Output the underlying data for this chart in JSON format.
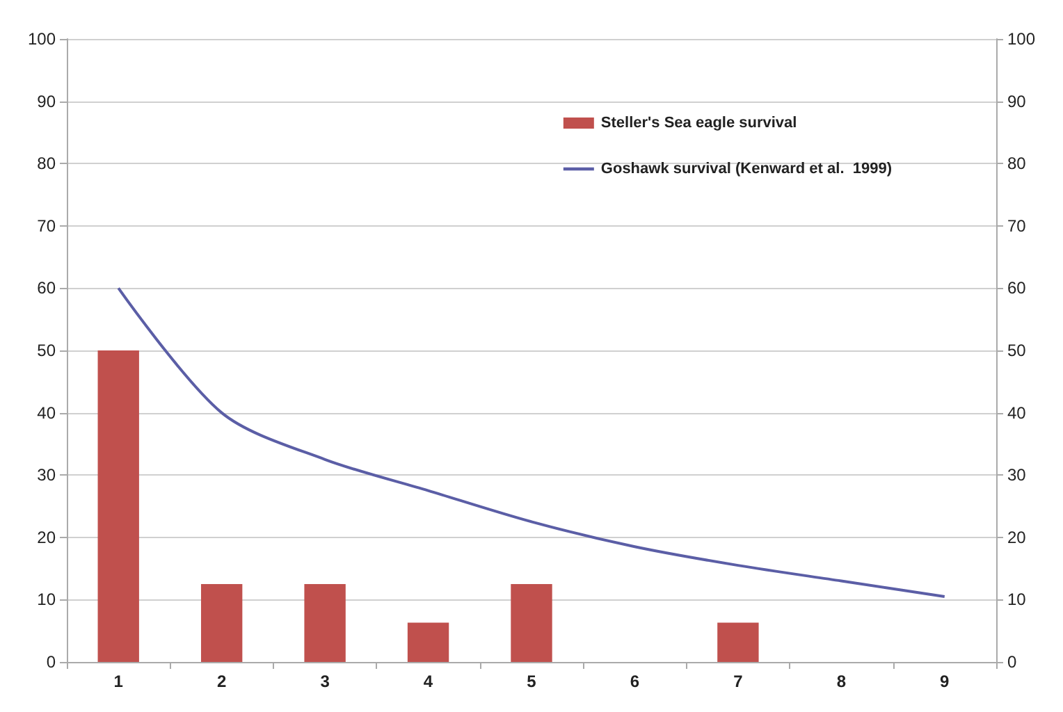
{
  "chart_data": {
    "type": "bar",
    "categories": [
      "1",
      "2",
      "3",
      "4",
      "5",
      "6",
      "7",
      "8",
      "9"
    ],
    "series": [
      {
        "name": "Steller's Sea eagle survival",
        "color": "#c0504d",
        "values": [
          50,
          12.5,
          12.5,
          6.3,
          12.5,
          0,
          6.3,
          0,
          0
        ]
      },
      {
        "name": "Goshawk survival (Kenward et al.  1999)",
        "color": "#5b5ea6",
        "type": "line",
        "axis": "y2",
        "values": [
          60,
          40,
          32.5,
          27.5,
          22.5,
          18.5,
          15.5,
          13,
          10.5
        ]
      }
    ],
    "ylim": [
      0,
      100
    ],
    "yticks": [
      0,
      10,
      20,
      30,
      40,
      50,
      60,
      70,
      80,
      90,
      100
    ],
    "y2lim": [
      0,
      100
    ],
    "y2ticks": [
      0,
      10,
      20,
      30,
      40,
      50,
      60,
      70,
      80,
      90,
      100
    ],
    "grid": "y",
    "legend": "top right",
    "marker": "none"
  }
}
